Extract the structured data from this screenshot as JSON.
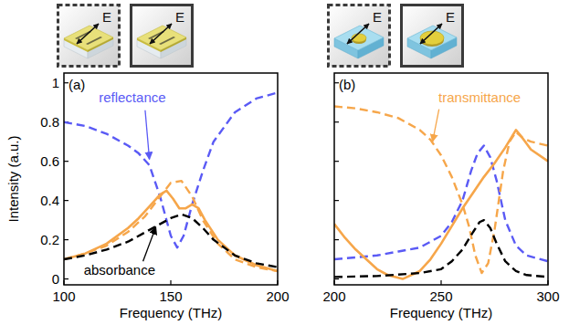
{
  "chart_data": [
    {
      "type": "line",
      "panel_label": "(a)",
      "x_label": "Frequency (THz)",
      "y_label": "Intensity (a.u.)",
      "xlim": [
        100,
        200
      ],
      "xticks": [
        100,
        150,
        200
      ],
      "ylim": [
        -0.03,
        1.05
      ],
      "yticks": [
        0,
        0.2,
        0.4,
        0.6,
        0.8,
        1
      ],
      "grid": false,
      "series": [
        {
          "name": "reflectance",
          "color": "#5a5af5",
          "line_style": "dashed",
          "x": [
            100,
            110,
            120,
            130,
            135,
            140,
            145,
            150,
            153,
            156,
            160,
            165,
            170,
            180,
            190,
            200
          ],
          "values": [
            0.8,
            0.78,
            0.74,
            0.68,
            0.64,
            0.58,
            0.42,
            0.22,
            0.16,
            0.22,
            0.38,
            0.55,
            0.7,
            0.85,
            0.92,
            0.95
          ]
        },
        {
          "color": "#f6a64a",
          "line_style": "dashed",
          "x": [
            100,
            110,
            120,
            130,
            138,
            145,
            150,
            155,
            160,
            165,
            172,
            180,
            190,
            200
          ],
          "values": [
            0.1,
            0.13,
            0.17,
            0.24,
            0.32,
            0.42,
            0.49,
            0.5,
            0.42,
            0.3,
            0.18,
            0.1,
            0.06,
            0.04
          ]
        },
        {
          "color": "#f6a64a",
          "line_style": "solid",
          "x": [
            100,
            110,
            120,
            130,
            135,
            140,
            145,
            148,
            151,
            154,
            157,
            160,
            163,
            166,
            172,
            180,
            190,
            200
          ],
          "values": [
            0.1,
            0.13,
            0.18,
            0.26,
            0.31,
            0.37,
            0.43,
            0.45,
            0.41,
            0.36,
            0.36,
            0.38,
            0.36,
            0.3,
            0.2,
            0.12,
            0.07,
            0.04
          ]
        },
        {
          "name": "absorbance",
          "color": "#000000",
          "line_style": "dashed",
          "x": [
            100,
            110,
            120,
            130,
            140,
            145,
            150,
            155,
            160,
            165,
            170,
            180,
            190,
            200
          ],
          "values": [
            0.1,
            0.12,
            0.15,
            0.19,
            0.25,
            0.28,
            0.31,
            0.33,
            0.31,
            0.26,
            0.2,
            0.12,
            0.08,
            0.06
          ]
        }
      ]
    },
    {
      "type": "line",
      "panel_label": "(b)",
      "x_label": "Frequency (THz)",
      "xlim": [
        200,
        300
      ],
      "xticks": [
        200,
        250,
        300
      ],
      "ylim": [
        -0.03,
        1.05
      ],
      "yticks": [
        0,
        0.2,
        0.4,
        0.6,
        0.8,
        1
      ],
      "grid": false,
      "tick_labels": "x",
      "series": [
        {
          "color": "#5a5af5",
          "line_style": "dashed",
          "x": [
            200,
            210,
            220,
            230,
            240,
            250,
            255,
            260,
            264,
            267,
            270,
            273,
            276,
            280,
            285,
            290,
            300
          ],
          "values": [
            0.1,
            0.11,
            0.12,
            0.14,
            0.16,
            0.22,
            0.29,
            0.4,
            0.55,
            0.64,
            0.68,
            0.62,
            0.5,
            0.3,
            0.17,
            0.12,
            0.09
          ]
        },
        {
          "name": "transmittance",
          "color": "#f6a64a",
          "line_style": "dashed",
          "x": [
            200,
            210,
            220,
            230,
            240,
            245,
            250,
            255,
            260,
            263,
            266,
            269,
            272,
            275,
            279,
            282,
            285,
            288,
            292,
            300
          ],
          "values": [
            0.88,
            0.87,
            0.85,
            0.82,
            0.76,
            0.71,
            0.63,
            0.52,
            0.38,
            0.27,
            0.12,
            0.03,
            0.08,
            0.25,
            0.55,
            0.7,
            0.75,
            0.72,
            0.7,
            0.68
          ]
        },
        {
          "color": "#f6a64a",
          "line_style": "solid",
          "x": [
            200,
            205,
            210,
            215,
            220,
            225,
            232,
            240,
            245,
            250,
            255,
            260,
            265,
            270,
            275,
            280,
            285,
            288,
            292,
            300
          ],
          "values": [
            0.28,
            0.21,
            0.15,
            0.1,
            0.05,
            0.02,
            0.0,
            0.04,
            0.1,
            0.18,
            0.27,
            0.36,
            0.44,
            0.52,
            0.59,
            0.67,
            0.76,
            0.72,
            0.66,
            0.6
          ]
        },
        {
          "color": "#000000",
          "line_style": "dashed",
          "x": [
            200,
            220,
            240,
            250,
            255,
            260,
            265,
            268,
            270,
            273,
            276,
            280,
            285,
            290,
            300
          ],
          "values": [
            0.01,
            0.015,
            0.03,
            0.05,
            0.09,
            0.15,
            0.24,
            0.29,
            0.3,
            0.26,
            0.18,
            0.09,
            0.04,
            0.02,
            0.01
          ]
        }
      ]
    }
  ],
  "insets": {
    "field_label": "E"
  }
}
